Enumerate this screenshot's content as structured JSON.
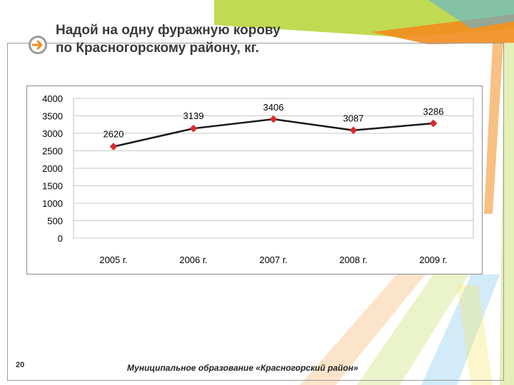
{
  "slide": {
    "title_line1": "Надой на одну фуражную корову",
    "title_line2": "по Красногорскому району, кг.",
    "page_number": "20",
    "footer": "Муниципальное образование «Красногорский район»",
    "icon": "arrow-right-circle-icon"
  },
  "colors": {
    "line": "#1a1a1a",
    "marker": "#e0282d",
    "accent_orange": "#f28c1e",
    "accent_green": "#b5d334",
    "accent_blue": "#5bb3e0",
    "title": "#3a3a3a"
  },
  "chart_data": {
    "type": "line",
    "title": "",
    "xlabel": "",
    "ylabel": "",
    "categories": [
      "2005 г.",
      "2006 г.",
      "2007 г.",
      "2008 г.",
      "2009 г."
    ],
    "series": [
      {
        "values": [
          2620,
          3139,
          3406,
          3087,
          3286
        ]
      }
    ],
    "data_labels": [
      "2620",
      "3139",
      "3406",
      "3087",
      "3286"
    ],
    "y_ticks": [
      "0",
      "500",
      "1000",
      "1500",
      "2000",
      "2500",
      "3000",
      "3500",
      "4000"
    ],
    "ylim": [
      0,
      4000
    ],
    "grid": true,
    "legend": "none"
  }
}
